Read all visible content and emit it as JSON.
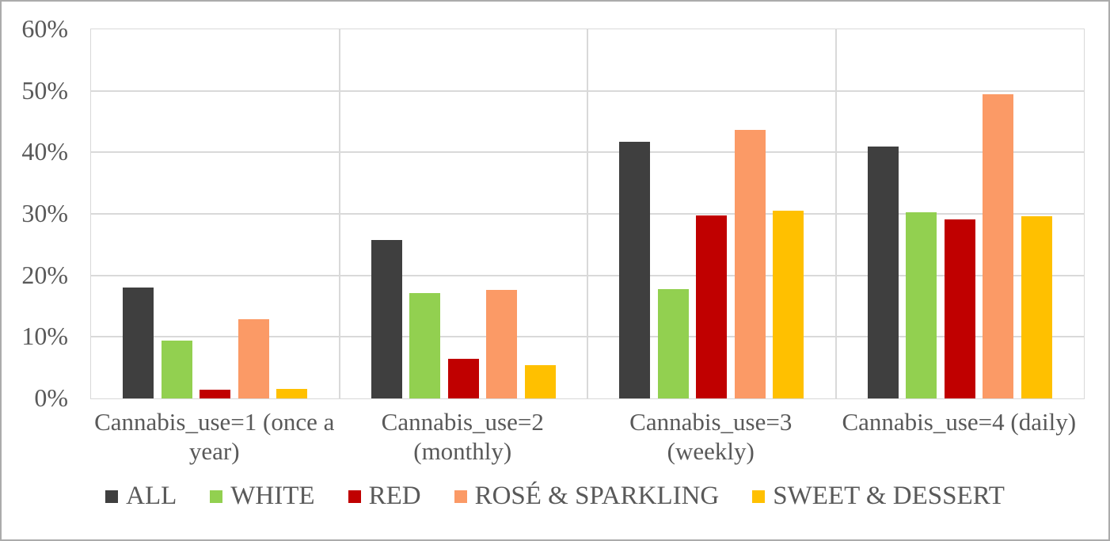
{
  "colors": {
    "background": "#FFFFFF",
    "frame_border": "#ABABAB",
    "gridline": "#D9D9D9",
    "axis_text": "#595959"
  },
  "chart_data": {
    "type": "bar",
    "title": "",
    "xlabel": "",
    "ylabel": "",
    "categories": [
      "Cannabis_use=1 (once a year)",
      "Cannabis_use=2 (monthly)",
      "Cannabis_use=3 (weekly)",
      "Cannabis_use=4 (daily)"
    ],
    "category_lines": [
      [
        "Cannabis_use=1 (once a",
        "year)"
      ],
      [
        "Cannabis_use=2",
        "(monthly)"
      ],
      [
        "Cannabis_use=3",
        "(weekly)"
      ],
      [
        "Cannabis_use=4 (daily)"
      ]
    ],
    "series": [
      {
        "name": "ALL",
        "color": "#3F3F3F",
        "values": [
          18.0,
          25.8,
          41.7,
          41.0
        ]
      },
      {
        "name": "WHITE",
        "color": "#92D050",
        "values": [
          9.4,
          17.1,
          17.8,
          30.2
        ]
      },
      {
        "name": "RED",
        "color": "#C00000",
        "values": [
          1.4,
          6.5,
          29.7,
          29.1
        ]
      },
      {
        "name": "ROSÉ & SPARKLING",
        "color": "#FB9A66",
        "values": [
          12.9,
          17.7,
          43.7,
          49.4
        ]
      },
      {
        "name": "SWEET & DESSERT",
        "color": "#FFC000",
        "values": [
          1.5,
          5.4,
          30.5,
          29.6
        ]
      }
    ],
    "y_axis": {
      "min": 0,
      "max": 60,
      "step": 10,
      "tick_labels": [
        "0%",
        "10%",
        "20%",
        "30%",
        "40%",
        "50%",
        "60%"
      ]
    },
    "grid": true,
    "vertical_group_separators": true,
    "legend_position": "bottom"
  }
}
